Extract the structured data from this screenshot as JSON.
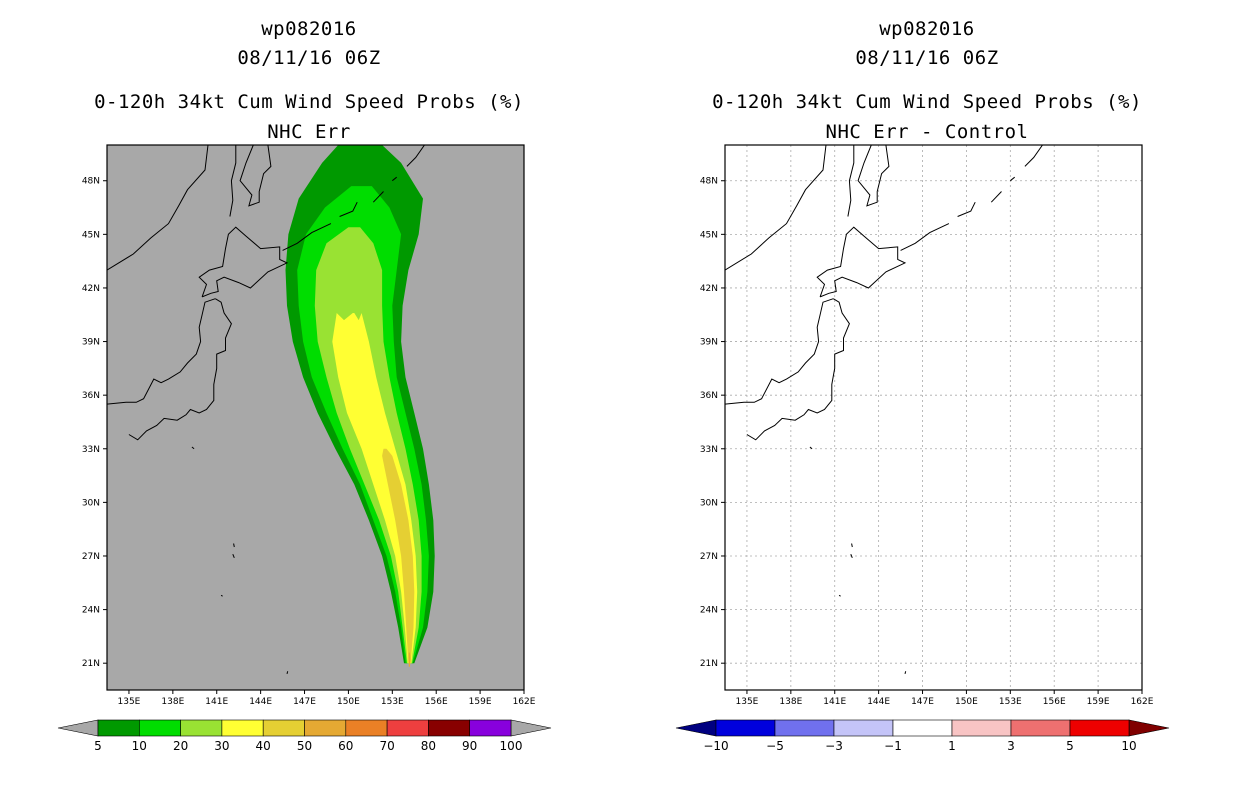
{
  "chart_data": [
    {
      "type": "heatmap",
      "panel": "left",
      "title_lines": [
        "wp082016",
        "08/11/16 06Z",
        "0-120h 34kt Cum Wind Speed Probs (%)",
        "NHC Err"
      ],
      "x_ticks": [
        "135E",
        "138E",
        "141E",
        "144E",
        "147E",
        "150E",
        "153E",
        "156E",
        "159E",
        "162E"
      ],
      "y_ticks": [
        "21N",
        "24N",
        "27N",
        "30N",
        "33N",
        "36N",
        "39N",
        "42N",
        "45N",
        "48N"
      ],
      "xlim": [
        133.5,
        162
      ],
      "ylim": [
        19.5,
        50
      ],
      "grid": false,
      "background": "#a8a8a8",
      "colorbar": {
        "labels": [
          "5",
          "10",
          "20",
          "30",
          "40",
          "50",
          "60",
          "70",
          "80",
          "90",
          "100"
        ],
        "colors": [
          "#009900",
          "#00dd00",
          "#99e233",
          "#ffff33",
          "#e5cf33",
          "#e5a933",
          "#ea8026",
          "#ee3f3f",
          "#880000",
          "#8800dd"
        ],
        "extend_colors": [
          "#a8a8a8",
          "#a8a8a8"
        ]
      },
      "contour_levels": [
        {
          "level": 5,
          "color": "#009900",
          "west": [
            [
              21,
              153.8
            ],
            [
              23,
              153.4
            ],
            [
              25,
              152.9
            ],
            [
              27,
              152.3
            ],
            [
              29,
              151.4
            ],
            [
              31,
              150.4
            ],
            [
              33,
              149.1
            ],
            [
              35,
              147.9
            ],
            [
              37,
              146.9
            ],
            [
              39,
              146.2
            ],
            [
              41,
              145.8
            ],
            [
              43,
              145.7
            ],
            [
              45,
              145.9
            ],
            [
              47,
              146.6
            ],
            [
              49,
              148.2
            ],
            [
              50,
              149.3
            ]
          ],
          "east": [
            [
              21,
              154.5
            ],
            [
              23,
              155.4
            ],
            [
              25,
              155.8
            ],
            [
              27,
              155.9
            ],
            [
              29,
              155.8
            ],
            [
              31,
              155.5
            ],
            [
              33,
              155.1
            ],
            [
              35,
              154.5
            ],
            [
              37,
              153.9
            ],
            [
              39,
              153.6
            ],
            [
              41,
              153.7
            ],
            [
              43,
              154.1
            ],
            [
              45,
              154.8
            ],
            [
              47,
              155.1
            ],
            [
              49,
              153.6
            ],
            [
              50,
              152.3
            ]
          ]
        },
        {
          "level": 10,
          "color": "#00dd00",
          "west": [
            [
              21,
              153.9
            ],
            [
              23,
              153.6
            ],
            [
              25,
              153.2
            ],
            [
              27,
              152.6
            ],
            [
              29,
              151.7
            ],
            [
              31,
              150.8
            ],
            [
              33,
              149.6
            ],
            [
              35,
              148.5
            ],
            [
              37,
              147.5
            ],
            [
              39,
              146.9
            ],
            [
              41,
              146.6
            ],
            [
              43,
              146.5
            ],
            [
              45,
              147.1
            ],
            [
              46.5,
              148.4
            ],
            [
              47.7,
              150.2
            ]
          ],
          "east": [
            [
              21,
              154.4
            ],
            [
              23,
              155.1
            ],
            [
              25,
              155.4
            ],
            [
              27,
              155.5
            ],
            [
              29,
              155.3
            ],
            [
              31,
              155.0
            ],
            [
              33,
              154.5
            ],
            [
              35,
              153.9
            ],
            [
              37,
              153.3
            ],
            [
              39,
              153.1
            ],
            [
              41,
              153.0
            ],
            [
              43,
              153.3
            ],
            [
              45,
              153.6
            ],
            [
              46.5,
              152.8
            ],
            [
              47.7,
              151.6
            ]
          ]
        },
        {
          "level": 20,
          "color": "#99e233",
          "west": [
            [
              21,
              154.0
            ],
            [
              23,
              153.7
            ],
            [
              25,
              153.4
            ],
            [
              27,
              152.9
            ],
            [
              29,
              152.1
            ],
            [
              31,
              151.1
            ],
            [
              33,
              150.1
            ],
            [
              35,
              149.2
            ],
            [
              37,
              148.5
            ],
            [
              39,
              147.9
            ],
            [
              41,
              147.7
            ],
            [
              43,
              147.8
            ],
            [
              44.5,
              148.5
            ],
            [
              45.4,
              150.0
            ]
          ],
          "east": [
            [
              21,
              154.35
            ],
            [
              23,
              154.8
            ],
            [
              25,
              155.0
            ],
            [
              27,
              155.0
            ],
            [
              29,
              154.8
            ],
            [
              31,
              154.4
            ],
            [
              33,
              153.9
            ],
            [
              35,
              153.3
            ],
            [
              37,
              152.8
            ],
            [
              39,
              152.4
            ],
            [
              41,
              152.3
            ],
            [
              43,
              152.3
            ],
            [
              44.5,
              151.7
            ],
            [
              45.4,
              150.8
            ]
          ]
        },
        {
          "level": 30,
          "color": "#ffff33",
          "west": [
            [
              21,
              154.05
            ],
            [
              23,
              153.85
            ],
            [
              25,
              153.6
            ],
            [
              27,
              153.2
            ],
            [
              29,
              152.5
            ],
            [
              31,
              151.7
            ],
            [
              33,
              150.9
            ],
            [
              35,
              149.9
            ],
            [
              37,
              149.3
            ],
            [
              39,
              148.9
            ],
            [
              40.6,
              149.2
            ],
            [
              40.2,
              149.7
            ],
            [
              40.6,
              150.3
            ]
          ],
          "east": [
            [
              21,
              154.3
            ],
            [
              23,
              154.6
            ],
            [
              25,
              154.7
            ],
            [
              27,
              154.6
            ],
            [
              29,
              154.3
            ],
            [
              31,
              153.9
            ],
            [
              33,
              153.2
            ],
            [
              35,
              152.5
            ],
            [
              37,
              151.9
            ],
            [
              39,
              151.4
            ],
            [
              40.6,
              150.9
            ],
            [
              40.2,
              150.7
            ],
            [
              40.6,
              150.4
            ]
          ]
        },
        {
          "level": 40,
          "color": "#e5cf33",
          "west": [
            [
              21,
              154.1
            ],
            [
              23,
              153.95
            ],
            [
              25,
              153.8
            ],
            [
              27,
              153.6
            ],
            [
              29,
              153.2
            ],
            [
              31,
              152.7
            ],
            [
              32.6,
              152.3
            ],
            [
              33,
              152.4
            ]
          ],
          "east": [
            [
              21,
              154.25
            ],
            [
              23,
              154.45
            ],
            [
              25,
              154.5
            ],
            [
              27,
              154.4
            ],
            [
              29,
              154.1
            ],
            [
              31,
              153.6
            ],
            [
              32.6,
              153.0
            ],
            [
              33,
              152.6
            ]
          ]
        },
        {
          "level": 50,
          "color": "#e5a933",
          "west": [
            [
              20.8,
              154.13
            ],
            [
              21.2,
              154.12
            ],
            [
              21.6,
              154.13
            ]
          ],
          "east": [
            [
              20.8,
              154.2
            ],
            [
              21.2,
              154.24
            ],
            [
              21.6,
              154.2
            ]
          ]
        }
      ]
    },
    {
      "type": "heatmap",
      "panel": "right",
      "title_lines": [
        "wp082016",
        "08/11/16 06Z",
        "0-120h 34kt Cum Wind Speed Probs (%)",
        "NHC Err - Control"
      ],
      "x_ticks": [
        "135E",
        "138E",
        "141E",
        "144E",
        "147E",
        "150E",
        "153E",
        "156E",
        "159E",
        "162E"
      ],
      "y_ticks": [
        "21N",
        "24N",
        "27N",
        "30N",
        "33N",
        "36N",
        "39N",
        "42N",
        "45N",
        "48N"
      ],
      "xlim": [
        133.5,
        162
      ],
      "ylim": [
        19.5,
        50
      ],
      "grid": true,
      "background": "#ffffff",
      "colorbar": {
        "labels": [
          "-10",
          "-5",
          "-3",
          "-1",
          "1",
          "3",
          "5",
          "10"
        ],
        "colors": [
          "#0000dd",
          "#7070ee",
          "#c4c4f8",
          "#ffffff",
          "#f8c4c4",
          "#ee7070",
          "#ee0000"
        ],
        "extend_colors": [
          "#000080",
          "#800000"
        ]
      },
      "contour_levels": []
    }
  ],
  "coastlines": [
    [
      [
        135.0,
        33.8
      ],
      [
        135.6,
        33.5
      ],
      [
        136.2,
        34.0
      ],
      [
        136.9,
        34.3
      ],
      [
        137.4,
        34.7
      ],
      [
        138.3,
        34.6
      ],
      [
        138.9,
        34.9
      ],
      [
        139.2,
        35.2
      ],
      [
        139.8,
        35.0
      ],
      [
        140.3,
        35.2
      ],
      [
        140.8,
        35.7
      ],
      [
        140.8,
        36.6
      ],
      [
        141.0,
        37.5
      ],
      [
        141.0,
        38.3
      ],
      [
        141.6,
        38.5
      ],
      [
        141.6,
        39.2
      ],
      [
        142.0,
        40.0
      ],
      [
        141.5,
        40.6
      ],
      [
        141.3,
        41.2
      ],
      [
        140.9,
        41.4
      ]
    ],
    [
      [
        140.9,
        41.4
      ],
      [
        140.2,
        41.2
      ],
      [
        140.0,
        40.5
      ],
      [
        139.8,
        39.8
      ],
      [
        139.9,
        39.0
      ],
      [
        139.6,
        38.3
      ],
      [
        139.0,
        37.8
      ],
      [
        138.5,
        37.3
      ],
      [
        137.7,
        36.9
      ],
      [
        137.2,
        36.7
      ],
      [
        136.7,
        36.9
      ],
      [
        136.0,
        35.8
      ],
      [
        135.5,
        35.6
      ],
      [
        134.8,
        35.6
      ],
      [
        133.5,
        35.5
      ]
    ],
    [
      [
        140.0,
        41.5
      ],
      [
        140.3,
        42.2
      ],
      [
        139.8,
        42.6
      ],
      [
        140.5,
        43.0
      ],
      [
        141.4,
        43.2
      ],
      [
        141.6,
        44.2
      ],
      [
        141.8,
        45.0
      ],
      [
        142.3,
        45.4
      ],
      [
        143.0,
        44.9
      ],
      [
        144.0,
        44.2
      ],
      [
        145.3,
        44.3
      ],
      [
        145.3,
        43.6
      ],
      [
        145.8,
        43.4
      ],
      [
        144.5,
        42.9
      ],
      [
        143.3,
        42.0
      ],
      [
        142.5,
        42.3
      ],
      [
        141.5,
        42.6
      ],
      [
        141.0,
        42.4
      ],
      [
        141.1,
        41.8
      ],
      [
        140.6,
        41.7
      ],
      [
        140.0,
        41.5
      ]
    ],
    [
      [
        141.9,
        46.0
      ],
      [
        142.1,
        46.9
      ],
      [
        142.0,
        48.0
      ],
      [
        142.3,
        49.0
      ],
      [
        142.3,
        50.0
      ]
    ],
    [
      [
        143.5,
        50.0
      ],
      [
        143.0,
        49.0
      ],
      [
        142.6,
        48.0
      ],
      [
        143.4,
        47.2
      ],
      [
        143.2,
        46.6
      ],
      [
        143.9,
        46.8
      ],
      [
        143.9,
        47.4
      ],
      [
        144.2,
        48.4
      ],
      [
        144.7,
        48.8
      ],
      [
        144.5,
        50.0
      ]
    ],
    [
      [
        133.5,
        43.0
      ],
      [
        135.3,
        43.9
      ],
      [
        136.5,
        44.8
      ],
      [
        137.7,
        45.6
      ],
      [
        138.4,
        46.6
      ],
      [
        139.0,
        47.5
      ],
      [
        140.2,
        48.6
      ],
      [
        140.4,
        50.0
      ]
    ],
    [
      [
        145.5,
        44.1
      ],
      [
        146.5,
        44.5
      ],
      [
        147.5,
        45.1
      ],
      [
        148.8,
        45.6
      ]
    ],
    [
      [
        149.4,
        46.0
      ],
      [
        150.3,
        46.3
      ],
      [
        150.6,
        46.8
      ]
    ],
    [
      [
        151.7,
        46.8
      ],
      [
        152.4,
        47.4
      ]
    ],
    [
      [
        153.0,
        48.0
      ],
      [
        153.3,
        48.2
      ]
    ],
    [
      [
        154.0,
        48.8
      ],
      [
        154.6,
        49.3
      ],
      [
        155.2,
        50.0
      ]
    ]
  ],
  "islands": [
    [
      [
        139.3,
        33.1
      ],
      [
        139.45,
        33.0
      ]
    ],
    [
      [
        142.1,
        27.1
      ],
      [
        142.2,
        26.9
      ]
    ],
    [
      [
        141.3,
        24.8
      ],
      [
        141.4,
        24.75
      ]
    ],
    [
      [
        145.8,
        20.4
      ],
      [
        145.85,
        20.55
      ]
    ],
    [
      [
        142.15,
        27.7
      ],
      [
        142.2,
        27.5
      ]
    ]
  ]
}
